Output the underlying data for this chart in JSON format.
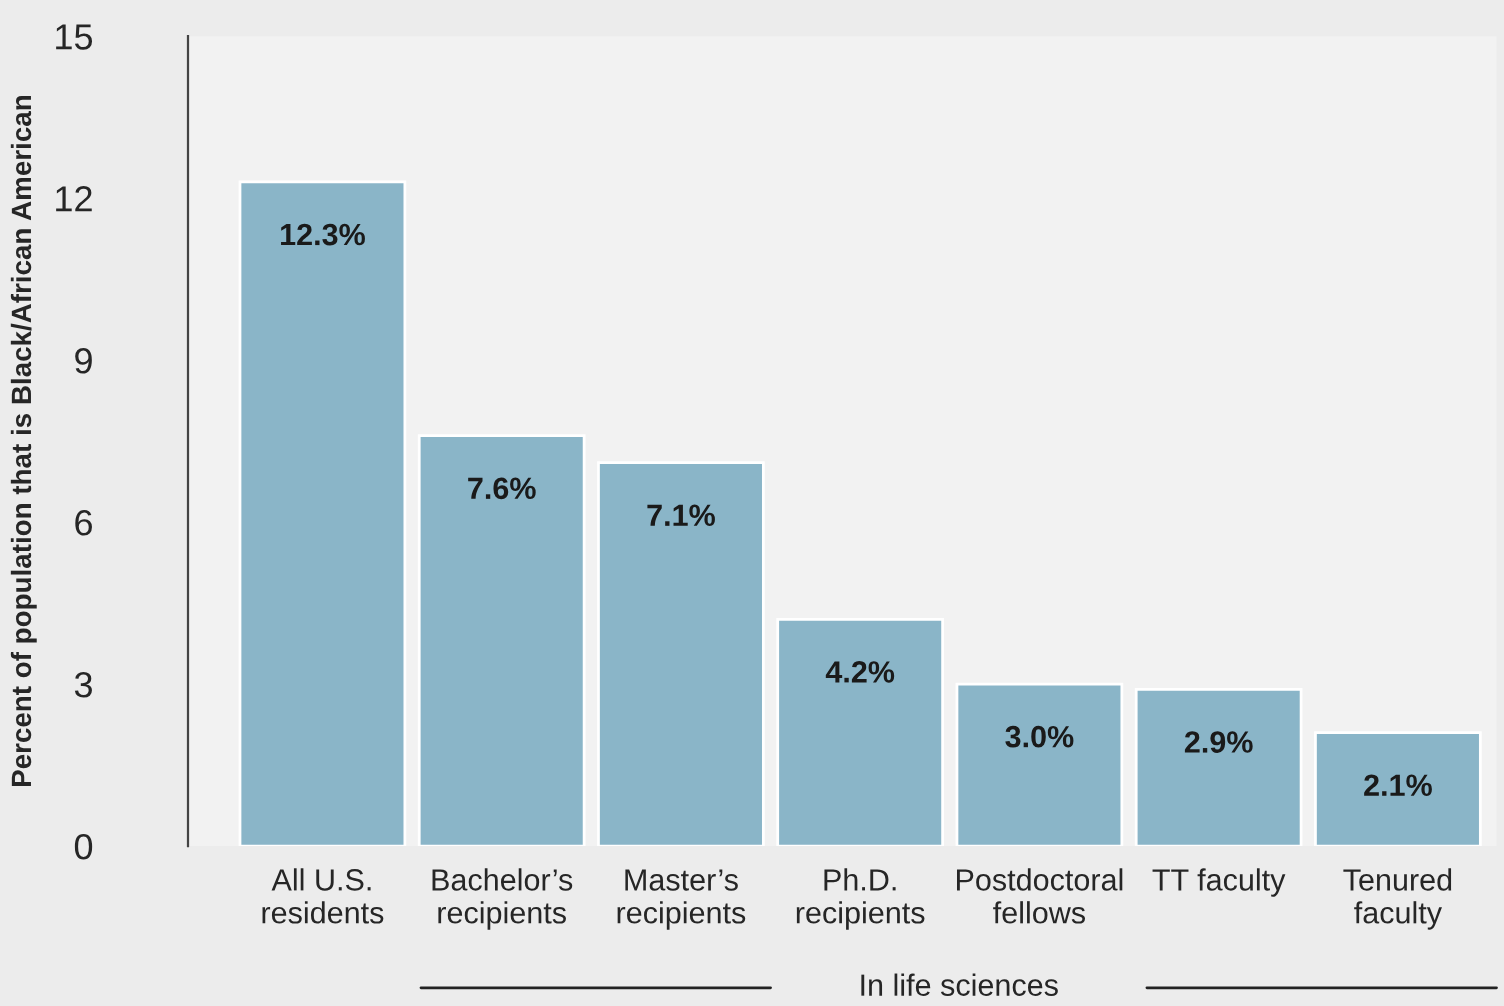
{
  "chart_data": {
    "type": "bar",
    "ylabel": "Percent of population that is Black/African American",
    "categories": [
      "All U.S.\nresidents",
      "Bachelor’s\nrecipients",
      "Master’s\nrecipients",
      "Ph.D.\nrecipients",
      "Postdoctoral\nfellows",
      "TT faculty",
      "Tenured\nfaculty"
    ],
    "values": [
      12.3,
      7.6,
      7.1,
      4.2,
      3.0,
      2.9,
      2.1
    ],
    "value_labels": [
      "12.3%",
      "7.6%",
      "7.1%",
      "4.2%",
      "3.0%",
      "2.9%",
      "2.1%"
    ],
    "color": "#8ab5c8",
    "ylim": [
      0,
      15
    ],
    "yticks": [
      0,
      3,
      6,
      9,
      12,
      15
    ],
    "grid": false,
    "legend": false,
    "annotations": [
      "In life sciences"
    ]
  }
}
